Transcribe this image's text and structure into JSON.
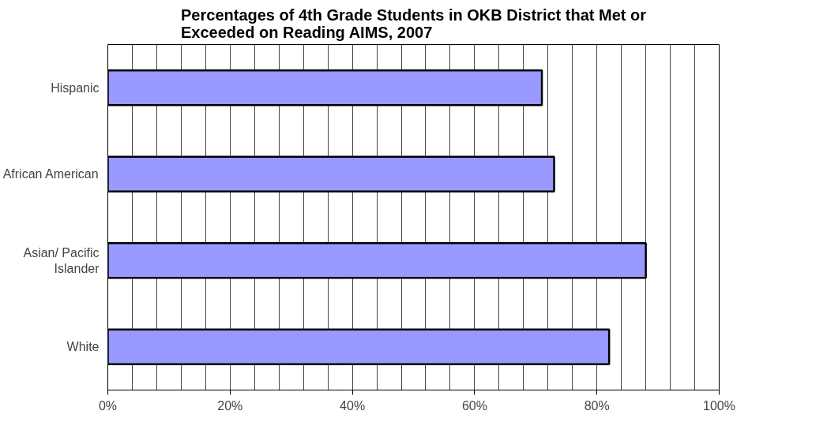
{
  "chart_data": {
    "type": "bar",
    "orientation": "horizontal",
    "title": "Percentages of 4th Grade Students in OKB District that Met or\nExceeded on Reading AIMS, 2007",
    "categories": [
      "Hispanic",
      "African American",
      "Asian/ Pacific\nIslander",
      "White"
    ],
    "values": [
      71,
      73,
      88,
      82
    ],
    "color": "#9999ff",
    "xlim": [
      0,
      100
    ],
    "xticks": [
      {
        "value": 0,
        "label": "0%"
      },
      {
        "value": 4,
        "label": null
      },
      {
        "value": 8,
        "label": null
      },
      {
        "value": 12,
        "label": null
      },
      {
        "value": 16,
        "label": null
      },
      {
        "value": 20,
        "label": "20%"
      },
      {
        "value": 24,
        "label": null
      },
      {
        "value": 28,
        "label": null
      },
      {
        "value": 32,
        "label": null
      },
      {
        "value": 36,
        "label": null
      },
      {
        "value": 40,
        "label": "40%"
      },
      {
        "value": 44,
        "label": null
      },
      {
        "value": 48,
        "label": null
      },
      {
        "value": 52,
        "label": null
      },
      {
        "value": 56,
        "label": null
      },
      {
        "value": 60,
        "label": "60%"
      },
      {
        "value": 64,
        "label": null
      },
      {
        "value": 68,
        "label": null
      },
      {
        "value": 72,
        "label": null
      },
      {
        "value": 76,
        "label": null
      },
      {
        "value": 80,
        "label": "80%"
      },
      {
        "value": 84,
        "label": null
      },
      {
        "value": 88,
        "label": null
      },
      {
        "value": 92,
        "label": null
      },
      {
        "value": 96,
        "label": null
      },
      {
        "value": 100,
        "label": "100%"
      }
    ],
    "grid": "x"
  }
}
